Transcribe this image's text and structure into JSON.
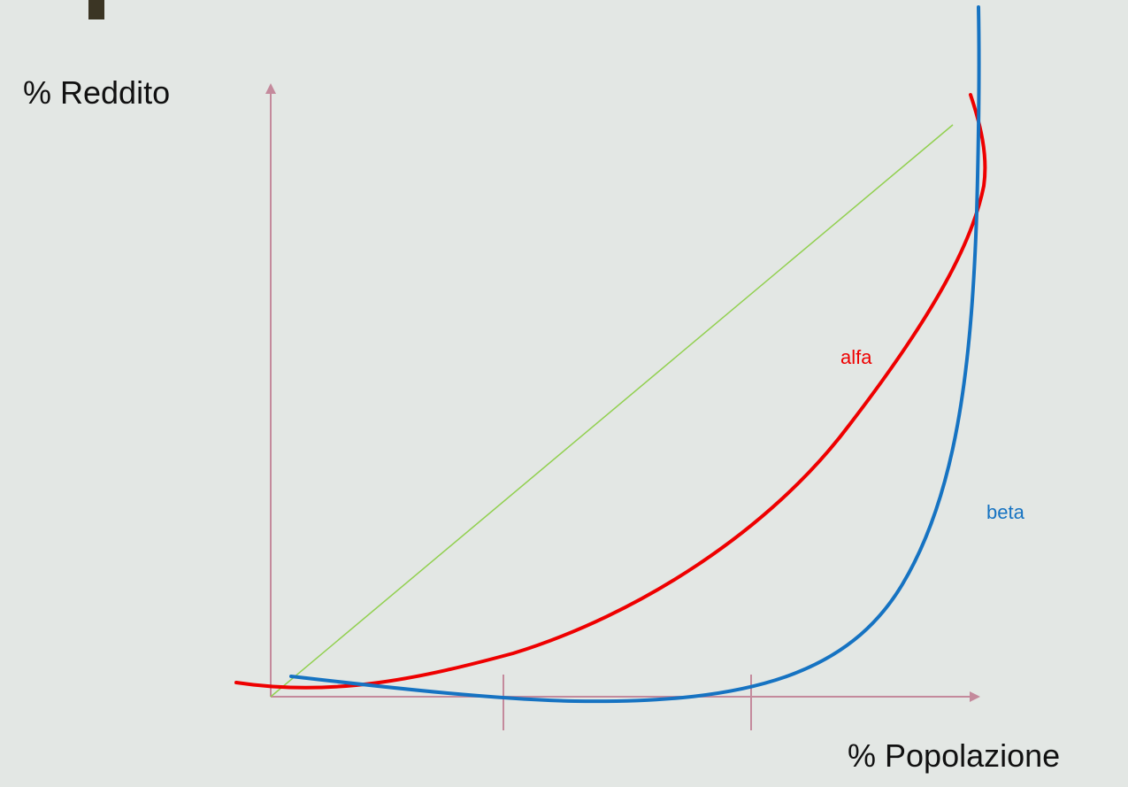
{
  "axes": {
    "y_label": "% Reddito",
    "x_label": "% Popolazione"
  },
  "curves": {
    "alfa": {
      "label": "alfa",
      "color": "#ee0000"
    },
    "beta": {
      "label": "beta",
      "color": "#1673c2"
    }
  },
  "colors": {
    "background": "#e3e7e4",
    "axis": "#c48a9c",
    "equality_line": "#92d050",
    "corner_mark": "#3b3524"
  }
}
